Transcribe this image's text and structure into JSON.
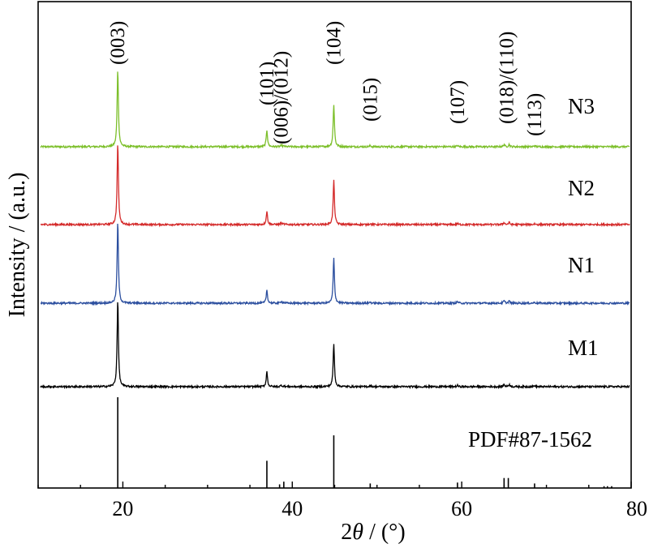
{
  "chart_data": {
    "type": "line",
    "title": "",
    "xlabel": "2θ / (°)",
    "xlabel_parts": {
      "symbol": "2",
      "theta": "θ",
      "unit": " / (°)"
    },
    "ylabel": "Intensity / (a.u.)",
    "xlim": [
      10,
      80
    ],
    "x_ticks": [
      20,
      40,
      60,
      80
    ],
    "grid": false,
    "legend": "none",
    "peaks": [
      {
        "pos": 19.4,
        "h": 1.0
      },
      {
        "pos": 37.0,
        "h": 0.4
      },
      {
        "pos": 38.7,
        "h": 0.14
      },
      {
        "pos": 39.0,
        "h": 0.08
      },
      {
        "pos": 44.9,
        "h": 0.72
      },
      {
        "pos": 49.2,
        "h": 0.12
      },
      {
        "pos": 59.5,
        "h": 0.13
      },
      {
        "pos": 65.0,
        "h": 0.17
      },
      {
        "pos": 65.6,
        "h": 0.17
      },
      {
        "pos": 68.6,
        "h": 0.12
      },
      {
        "pos": 76.8,
        "h": 0.02
      },
      {
        "pos": 77.7,
        "h": 0.02
      }
    ],
    "series": [
      {
        "name": "N3",
        "color": "#7cbf2a",
        "scale": [
          0.78,
          0.42,
          0.1,
          0.07,
          0.59,
          0.09,
          0.09,
          0.13,
          0.13,
          0.09,
          0.02,
          0.02
        ]
      },
      {
        "name": "N2",
        "color": "#d42a2a",
        "scale": [
          0.82,
          0.33,
          0.1,
          0.07,
          0.62,
          0.08,
          0.08,
          0.13,
          0.13,
          0.07,
          0.02,
          0.02
        ]
      },
      {
        "name": "N1",
        "color": "#2c4f9f",
        "scale": [
          0.82,
          0.33,
          0.14,
          0.08,
          0.63,
          0.09,
          0.13,
          0.15,
          0.15,
          0.08,
          0.02,
          0.02
        ]
      },
      {
        "name": "M1",
        "color": "#000000",
        "scale": [
          0.88,
          0.38,
          0.1,
          0.07,
          0.6,
          0.09,
          0.1,
          0.14,
          0.14,
          0.09,
          0.02,
          0.02
        ]
      }
    ],
    "reference": {
      "name": "PDF#87-1562",
      "color": "#000000",
      "lines": [
        {
          "pos": 19.4,
          "h": 1.0
        },
        {
          "pos": 37.0,
          "h": 0.3
        },
        {
          "pos": 38.5,
          "h": 0.04
        },
        {
          "pos": 39.0,
          "h": 0.07
        },
        {
          "pos": 44.9,
          "h": 0.58
        },
        {
          "pos": 49.2,
          "h": 0.05
        },
        {
          "pos": 59.5,
          "h": 0.06
        },
        {
          "pos": 65.0,
          "h": 0.11
        },
        {
          "pos": 65.5,
          "h": 0.11
        },
        {
          "pos": 68.6,
          "h": 0.05
        },
        {
          "pos": 76.8,
          "h": 0.02
        },
        {
          "pos": 77.2,
          "h": 0.02
        },
        {
          "pos": 77.7,
          "h": 0.02
        }
      ]
    },
    "peak_labels": [
      {
        "text": "(003)",
        "pos": 19.4
      },
      {
        "text": "(101)",
        "pos": 37.0
      },
      {
        "text": "(006)/(012)",
        "pos": 38.7
      },
      {
        "text": "(104)",
        "pos": 44.9
      },
      {
        "text": "(015)",
        "pos": 49.2
      },
      {
        "text": "(107)",
        "pos": 59.5
      },
      {
        "text": "(018)/(110)",
        "pos": 65.3
      },
      {
        "text": "(113)",
        "pos": 68.6
      }
    ]
  }
}
